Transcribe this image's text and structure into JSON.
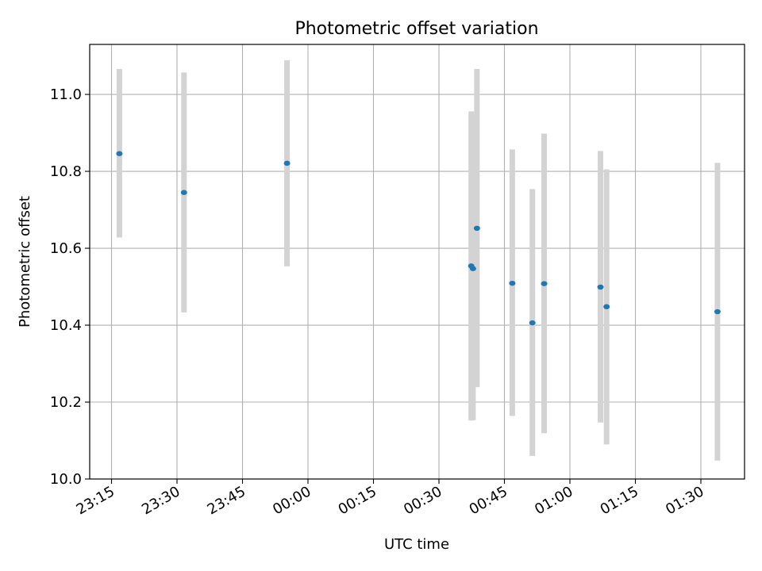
{
  "chart_data": {
    "type": "scatter",
    "title": "Photometric offset variation",
    "xlabel": "UTC time",
    "ylabel": "Photometric offset",
    "xlim": [
      "23:10",
      "01:40"
    ],
    "ylim": [
      10.0,
      11.13
    ],
    "grid": true,
    "x_ticks": [
      "23:15",
      "23:30",
      "23:45",
      "00:00",
      "00:15",
      "00:30",
      "00:45",
      "01:00",
      "01:15",
      "01:30"
    ],
    "y_ticks": [
      "10.0",
      "10.2",
      "10.4",
      "10.6",
      "10.8",
      "11.0"
    ],
    "point_color": "#1f77b4",
    "errorbar_color": "#d3d3d3",
    "points": [
      {
        "time": "23:16:48",
        "y": 10.846,
        "low": 10.628,
        "high": 11.066
      },
      {
        "time": "23:31:36",
        "y": 10.745,
        "low": 10.433,
        "high": 11.057
      },
      {
        "time": "23:55:12",
        "y": 10.821,
        "low": 10.553,
        "high": 11.089
      },
      {
        "time": "00:37:24",
        "y": 10.554,
        "low": 10.152,
        "high": 10.956
      },
      {
        "time": "00:37:48",
        "y": 10.547,
        "low": 10.153,
        "high": 10.946
      },
      {
        "time": "00:38:42",
        "y": 10.652,
        "low": 10.239,
        "high": 11.066
      },
      {
        "time": "00:46:48",
        "y": 10.509,
        "low": 10.164,
        "high": 10.857
      },
      {
        "time": "00:51:24",
        "y": 10.406,
        "low": 10.06,
        "high": 10.754
      },
      {
        "time": "00:54:06",
        "y": 10.508,
        "low": 10.119,
        "high": 10.898
      },
      {
        "time": "01:07:00",
        "y": 10.499,
        "low": 10.147,
        "high": 10.853
      },
      {
        "time": "01:08:24",
        "y": 10.448,
        "low": 10.09,
        "high": 10.805
      },
      {
        "time": "01:33:48",
        "y": 10.435,
        "low": 10.048,
        "high": 10.822
      }
    ]
  }
}
